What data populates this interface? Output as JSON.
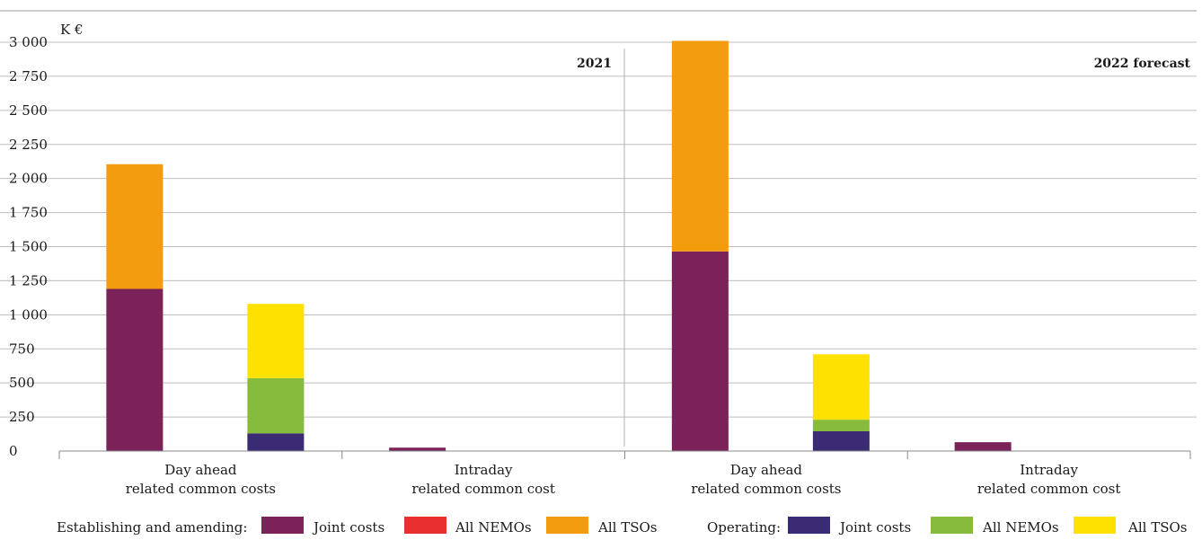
{
  "chart_data": {
    "type": "bar",
    "stacked": true,
    "ylabel": "K €",
    "ylim": [
      0,
      3000
    ],
    "yticks": [
      "0",
      "250",
      "500",
      "750",
      "1 000",
      "1 250",
      "1 500",
      "1 750",
      "2 000",
      "2 250",
      "2 500",
      "2 750",
      "3 000"
    ],
    "grid": true,
    "periods": [
      "2021",
      "2022 forecast"
    ],
    "categories": [
      [
        "Day ahead",
        "related common costs"
      ],
      [
        "Intraday",
        "related common cost"
      ],
      [
        "Day ahead",
        "related common costs"
      ],
      [
        "Intraday",
        "related common cost"
      ]
    ],
    "groups": [
      {
        "label": "Establishing and amending:",
        "series": [
          {
            "name": "Joint costs",
            "color": "#7b2359"
          },
          {
            "name": "All NEMOs",
            "color": "#e8312f"
          },
          {
            "name": "All TSOs",
            "color": "#f39c0d"
          }
        ]
      },
      {
        "label": "Operating:",
        "series": [
          {
            "name": "Joint costs",
            "color": "#3b2a74"
          },
          {
            "name": "All NEMOs",
            "color": "#86bb3d"
          },
          {
            "name": "All TSOs",
            "color": "#ffe100"
          }
        ]
      }
    ],
    "bars": [
      {
        "category": 0,
        "group": 0,
        "values": [
          1190,
          0,
          915
        ]
      },
      {
        "category": 0,
        "group": 1,
        "values": [
          130,
          405,
          545
        ]
      },
      {
        "category": 1,
        "group": 0,
        "values": [
          25,
          0,
          0
        ]
      },
      {
        "category": 1,
        "group": 1,
        "values": [
          0,
          0,
          0
        ]
      },
      {
        "category": 2,
        "group": 0,
        "values": [
          1465,
          0,
          1545
        ]
      },
      {
        "category": 2,
        "group": 1,
        "values": [
          145,
          85,
          480
        ]
      },
      {
        "category": 3,
        "group": 0,
        "values": [
          65,
          0,
          0
        ]
      },
      {
        "category": 3,
        "group": 1,
        "values": [
          0,
          0,
          0
        ]
      }
    ],
    "legend_position": "bottom"
  }
}
